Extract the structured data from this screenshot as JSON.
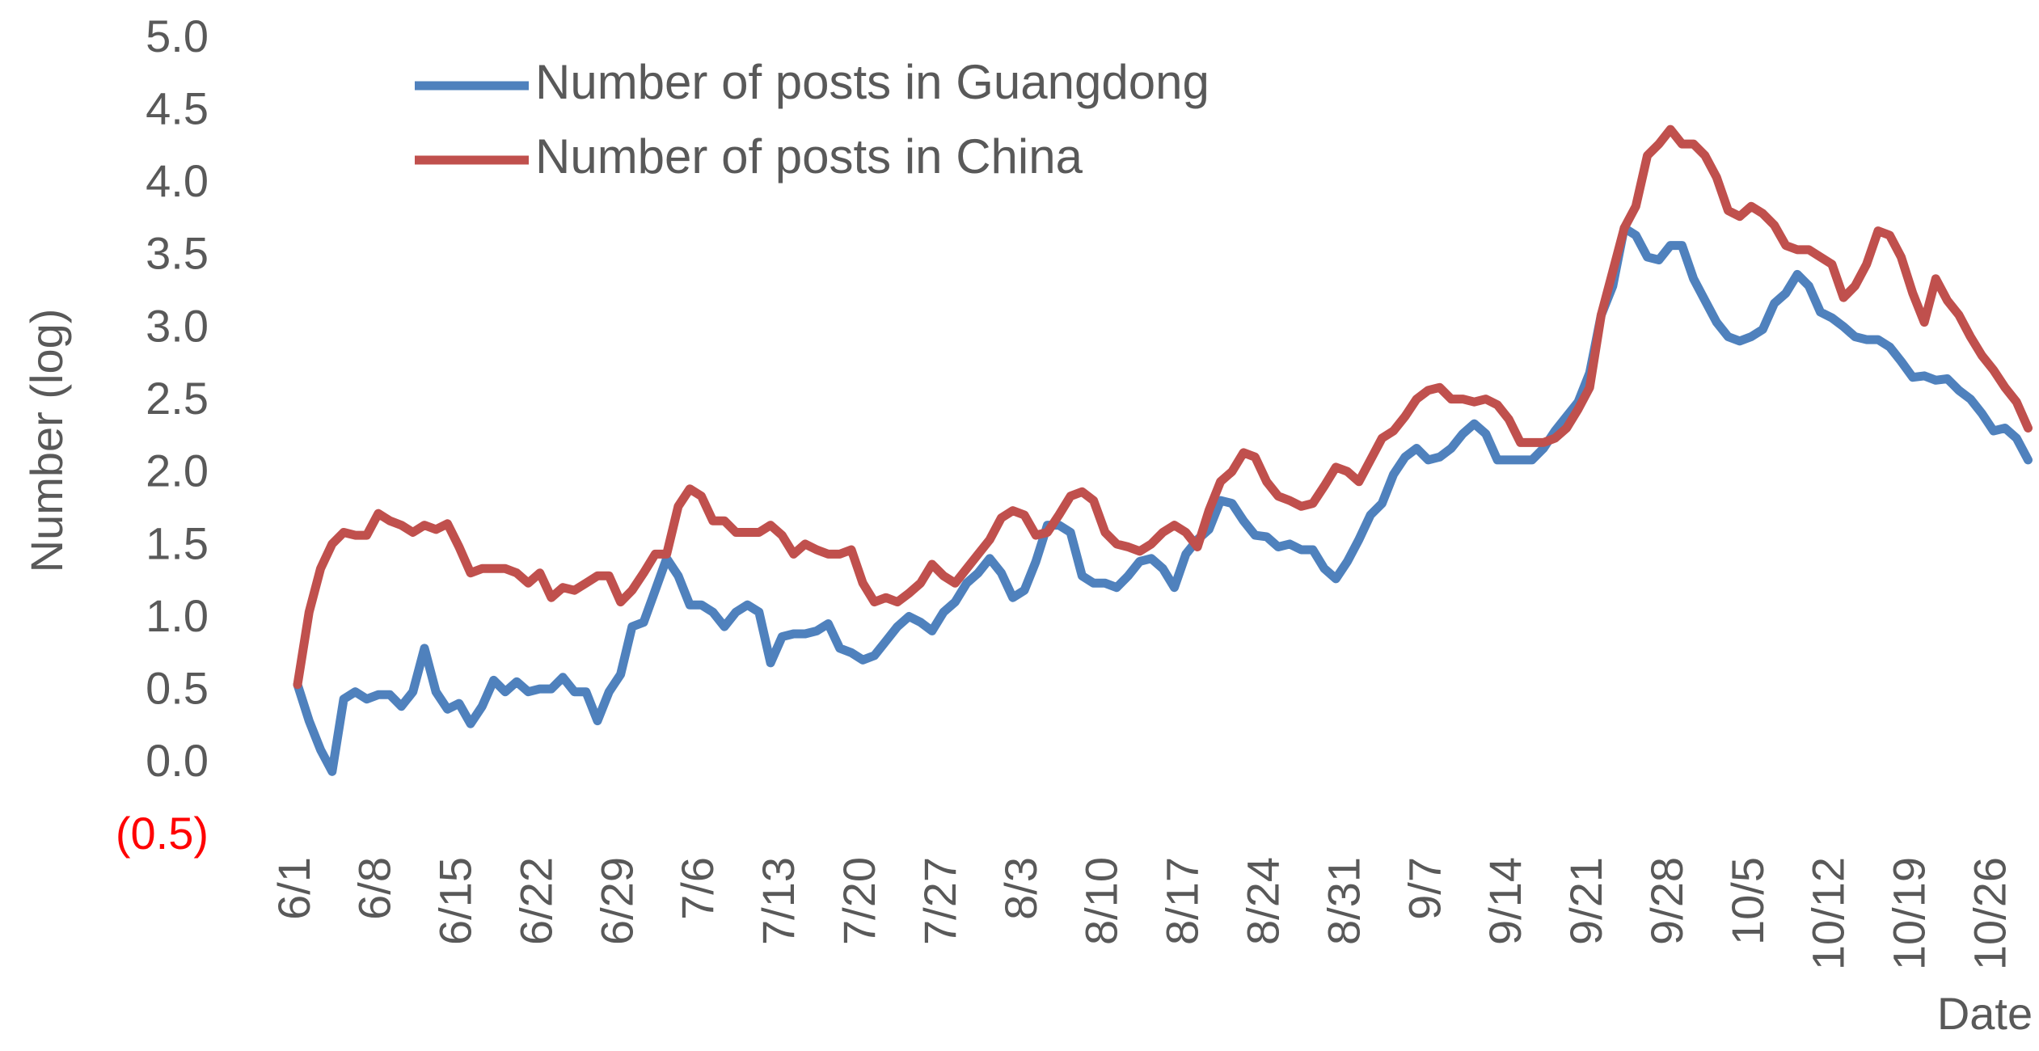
{
  "chart_data": {
    "type": "line",
    "y_label": "Number (log)",
    "x_label": "Date",
    "categories": [
      "6/1",
      null,
      null,
      null,
      null,
      null,
      null,
      "6/8",
      null,
      null,
      null,
      null,
      null,
      null,
      "6/15",
      null,
      null,
      null,
      null,
      null,
      null,
      "6/22",
      null,
      null,
      null,
      null,
      null,
      null,
      "6/29",
      null,
      null,
      null,
      null,
      null,
      null,
      "7/6",
      null,
      null,
      null,
      null,
      null,
      null,
      "7/13",
      null,
      null,
      null,
      null,
      null,
      null,
      "7/20",
      null,
      null,
      null,
      null,
      null,
      null,
      "7/27",
      null,
      null,
      null,
      null,
      null,
      null,
      "8/3",
      null,
      null,
      null,
      null,
      null,
      null,
      "8/10",
      null,
      null,
      null,
      null,
      null,
      null,
      "8/17",
      null,
      null,
      null,
      null,
      null,
      null,
      "8/24",
      null,
      null,
      null,
      null,
      null,
      null,
      "8/31",
      null,
      null,
      null,
      null,
      null,
      null,
      "9/7",
      null,
      null,
      null,
      null,
      null,
      null,
      "9/14",
      null,
      null,
      null,
      null,
      null,
      null,
      "9/21",
      null,
      null,
      null,
      null,
      null,
      null,
      "9/28",
      null,
      null,
      null,
      null,
      null,
      null,
      "10/5",
      null,
      null,
      null,
      null,
      null,
      null,
      "10/12",
      null,
      null,
      null,
      null,
      null,
      null,
      "10/19",
      null,
      null,
      null,
      null,
      null,
      null,
      "10/26",
      null,
      null,
      null
    ],
    "series": [
      {
        "name": "Number of posts in Guangdong",
        "color": "#4f81bd",
        "values": [
          0.55,
          0.3,
          0.1,
          -0.05,
          0.45,
          0.5,
          0.45,
          0.48,
          0.48,
          0.4,
          0.5,
          0.8,
          0.5,
          0.38,
          0.42,
          0.28,
          0.4,
          0.58,
          0.5,
          0.57,
          0.5,
          0.52,
          0.52,
          0.6,
          0.5,
          0.5,
          0.3,
          0.5,
          0.62,
          0.95,
          0.98,
          1.2,
          1.42,
          1.3,
          1.1,
          1.1,
          1.05,
          0.95,
          1.05,
          1.1,
          1.05,
          0.7,
          0.88,
          0.9,
          0.9,
          0.92,
          0.97,
          0.8,
          0.77,
          0.72,
          0.75,
          0.85,
          0.95,
          1.02,
          0.98,
          0.92,
          1.05,
          1.12,
          1.25,
          1.32,
          1.42,
          1.32,
          1.15,
          1.2,
          1.4,
          1.65,
          1.65,
          1.6,
          1.3,
          1.25,
          1.25,
          1.22,
          1.3,
          1.4,
          1.42,
          1.35,
          1.22,
          1.45,
          1.55,
          1.62,
          1.82,
          1.8,
          1.68,
          1.58,
          1.57,
          1.5,
          1.52,
          1.48,
          1.48,
          1.35,
          1.28,
          1.4,
          1.55,
          1.72,
          1.8,
          2.0,
          2.12,
          2.18,
          2.1,
          2.12,
          2.18,
          2.28,
          2.35,
          2.28,
          2.1,
          2.1,
          2.1,
          2.1,
          2.18,
          2.3,
          2.4,
          2.5,
          2.7,
          3.1,
          3.3,
          3.7,
          3.65,
          3.5,
          3.48,
          3.58,
          3.58,
          3.35,
          3.2,
          3.05,
          2.95,
          2.92,
          2.95,
          3.0,
          3.18,
          3.25,
          3.38,
          3.3,
          3.12,
          3.08,
          3.02,
          2.95,
          2.93,
          2.93,
          2.88,
          2.78,
          2.67,
          2.68,
          2.65,
          2.66,
          2.58,
          2.52,
          2.42,
          2.3,
          2.32,
          2.25,
          2.1
        ]
      },
      {
        "name": "Number of posts in China",
        "color": "#c0504d",
        "values": [
          0.55,
          1.05,
          1.35,
          1.52,
          1.6,
          1.58,
          1.58,
          1.73,
          1.68,
          1.65,
          1.6,
          1.65,
          1.62,
          1.66,
          1.5,
          1.32,
          1.35,
          1.35,
          1.35,
          1.32,
          1.25,
          1.32,
          1.15,
          1.22,
          1.2,
          1.25,
          1.3,
          1.3,
          1.12,
          1.2,
          1.32,
          1.45,
          1.45,
          1.78,
          1.9,
          1.85,
          1.68,
          1.68,
          1.6,
          1.6,
          1.6,
          1.65,
          1.58,
          1.45,
          1.52,
          1.48,
          1.45,
          1.45,
          1.48,
          1.25,
          1.12,
          1.15,
          1.12,
          1.18,
          1.25,
          1.38,
          1.3,
          1.25,
          1.35,
          1.45,
          1.55,
          1.7,
          1.75,
          1.72,
          1.58,
          1.6,
          1.72,
          1.85,
          1.88,
          1.82,
          1.6,
          1.52,
          1.5,
          1.47,
          1.52,
          1.6,
          1.65,
          1.6,
          1.5,
          1.75,
          1.95,
          2.02,
          2.15,
          2.12,
          1.95,
          1.85,
          1.82,
          1.78,
          1.8,
          1.92,
          2.05,
          2.02,
          1.95,
          2.1,
          2.25,
          2.3,
          2.4,
          2.52,
          2.58,
          2.6,
          2.52,
          2.52,
          2.5,
          2.52,
          2.48,
          2.38,
          2.22,
          2.22,
          2.22,
          2.25,
          2.32,
          2.45,
          2.6,
          3.1,
          3.4,
          3.7,
          3.85,
          4.2,
          4.28,
          4.38,
          4.28,
          4.28,
          4.2,
          4.05,
          3.82,
          3.78,
          3.85,
          3.8,
          3.72,
          3.58,
          3.55,
          3.55,
          3.5,
          3.45,
          3.22,
          3.3,
          3.45,
          3.68,
          3.65,
          3.5,
          3.25,
          3.05,
          3.35,
          3.2,
          3.1,
          2.95,
          2.82,
          2.72,
          2.6,
          2.5,
          2.32
        ]
      }
    ],
    "ylim": [
      -0.5,
      5.0
    ],
    "yticks": [
      {
        "value": -0.5,
        "label": "(0.5)"
      },
      {
        "value": 0,
        "label": "0.0"
      },
      {
        "value": 0.5,
        "label": "0.5"
      },
      {
        "value": 1,
        "label": "1.0"
      },
      {
        "value": 1.5,
        "label": "1.5"
      },
      {
        "value": 2,
        "label": "2.0"
      },
      {
        "value": 2.5,
        "label": "2.5"
      },
      {
        "value": 3,
        "label": "3.0"
      },
      {
        "value": 3.5,
        "label": "3.5"
      },
      {
        "value": 4,
        "label": "4.0"
      },
      {
        "value": 4.5,
        "label": "4.5"
      },
      {
        "value": 5,
        "label": "5.0"
      }
    ],
    "negative_tick_color": "#ff0000",
    "grid": false,
    "legend": "top-left"
  }
}
